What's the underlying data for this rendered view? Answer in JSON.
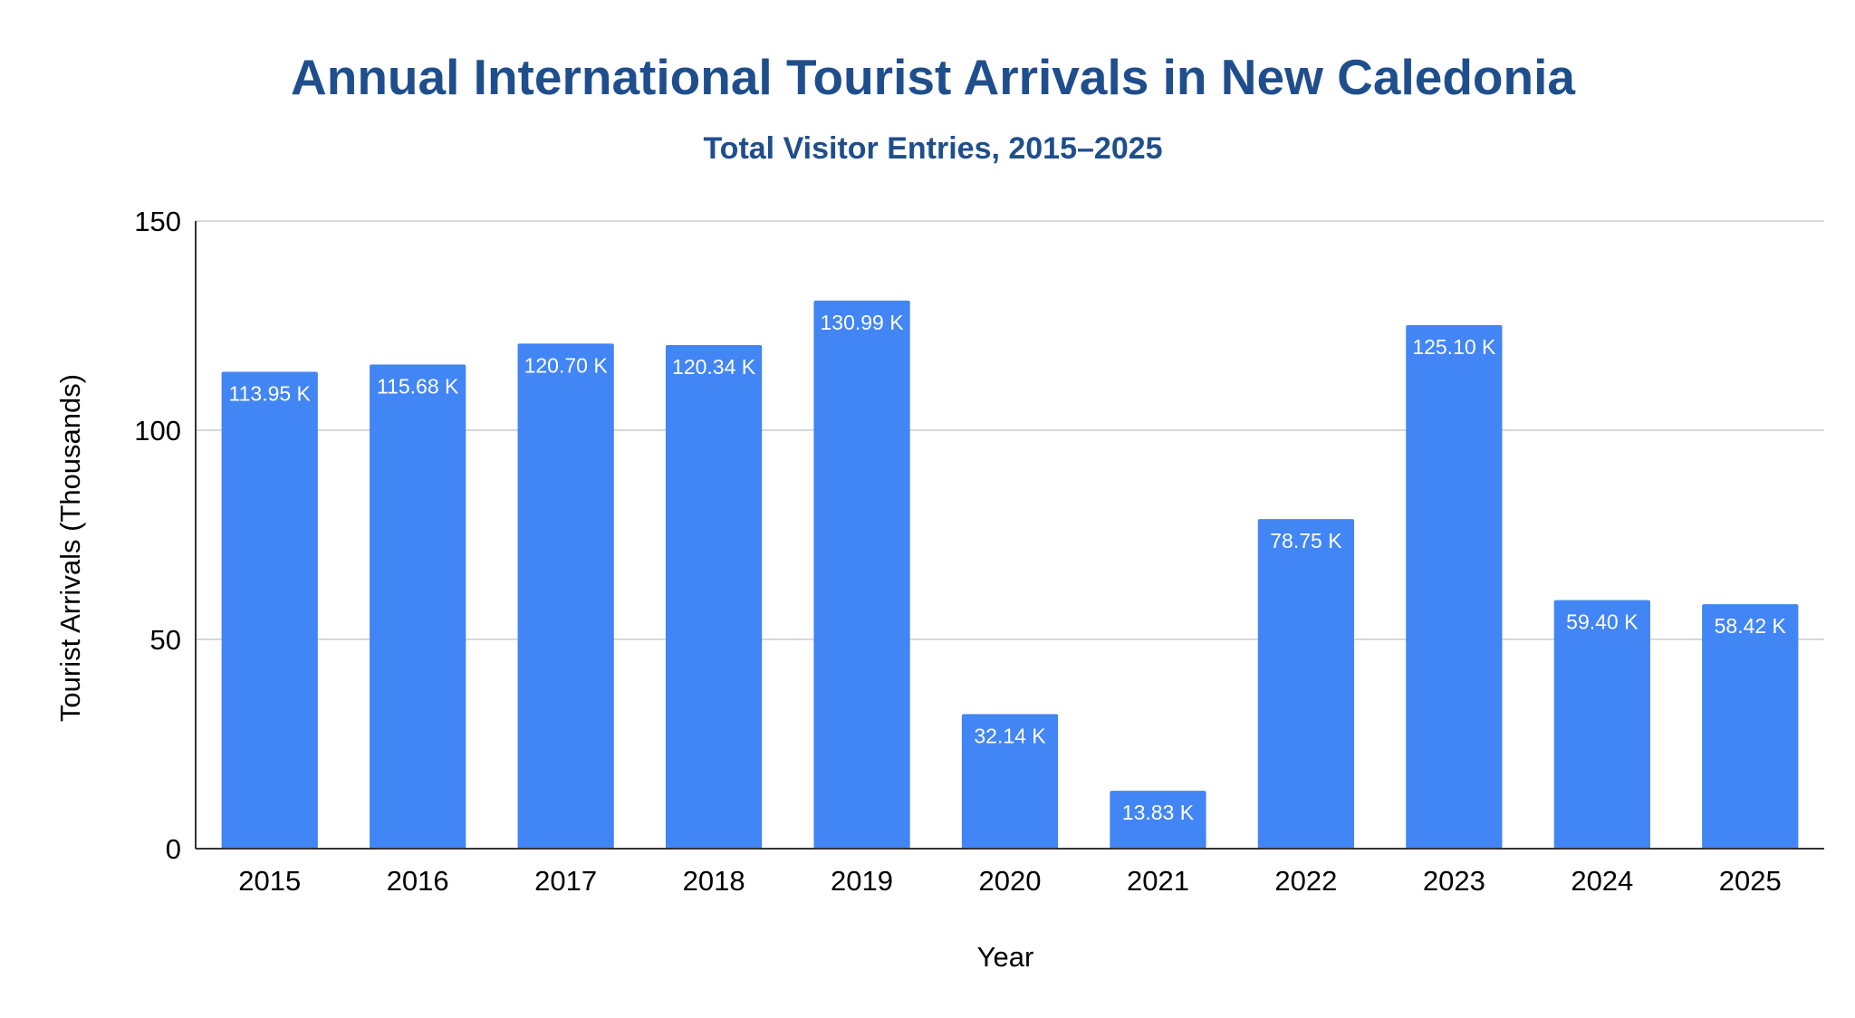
{
  "chart_data": {
    "type": "bar",
    "title": "Annual International Tourist Arrivals in New Caledonia",
    "subtitle": "Total Visitor Entries, 2015–2025",
    "xlabel": "Year",
    "ylabel": "Tourist Arrivals (Thousands)",
    "ylim": [
      0,
      150
    ],
    "yticks": [
      "0",
      "50",
      "100",
      "150"
    ],
    "grid": true,
    "legend": "none",
    "categories": [
      "2015",
      "2016",
      "2017",
      "2018",
      "2019",
      "2020",
      "2021",
      "2022",
      "2023",
      "2024",
      "2025"
    ],
    "values": [
      113.95,
      115.68,
      120.7,
      120.34,
      130.99,
      32.14,
      13.83,
      78.75,
      125.1,
      59.4,
      58.42
    ],
    "data_labels": [
      "113.95 K",
      "115.68 K",
      "120.70 K",
      "120.34 K",
      "130.99 K",
      "32.14 K",
      "13.83 K",
      "78.75 K",
      "125.10 K",
      "59.40 K",
      "58.42 K"
    ],
    "colors": {
      "bar": "#4285f4",
      "title": "#1f4e8c",
      "gridline": "#cccccc",
      "axis": "#333333",
      "text": "#000000",
      "bar_label": "#ffffff"
    }
  }
}
